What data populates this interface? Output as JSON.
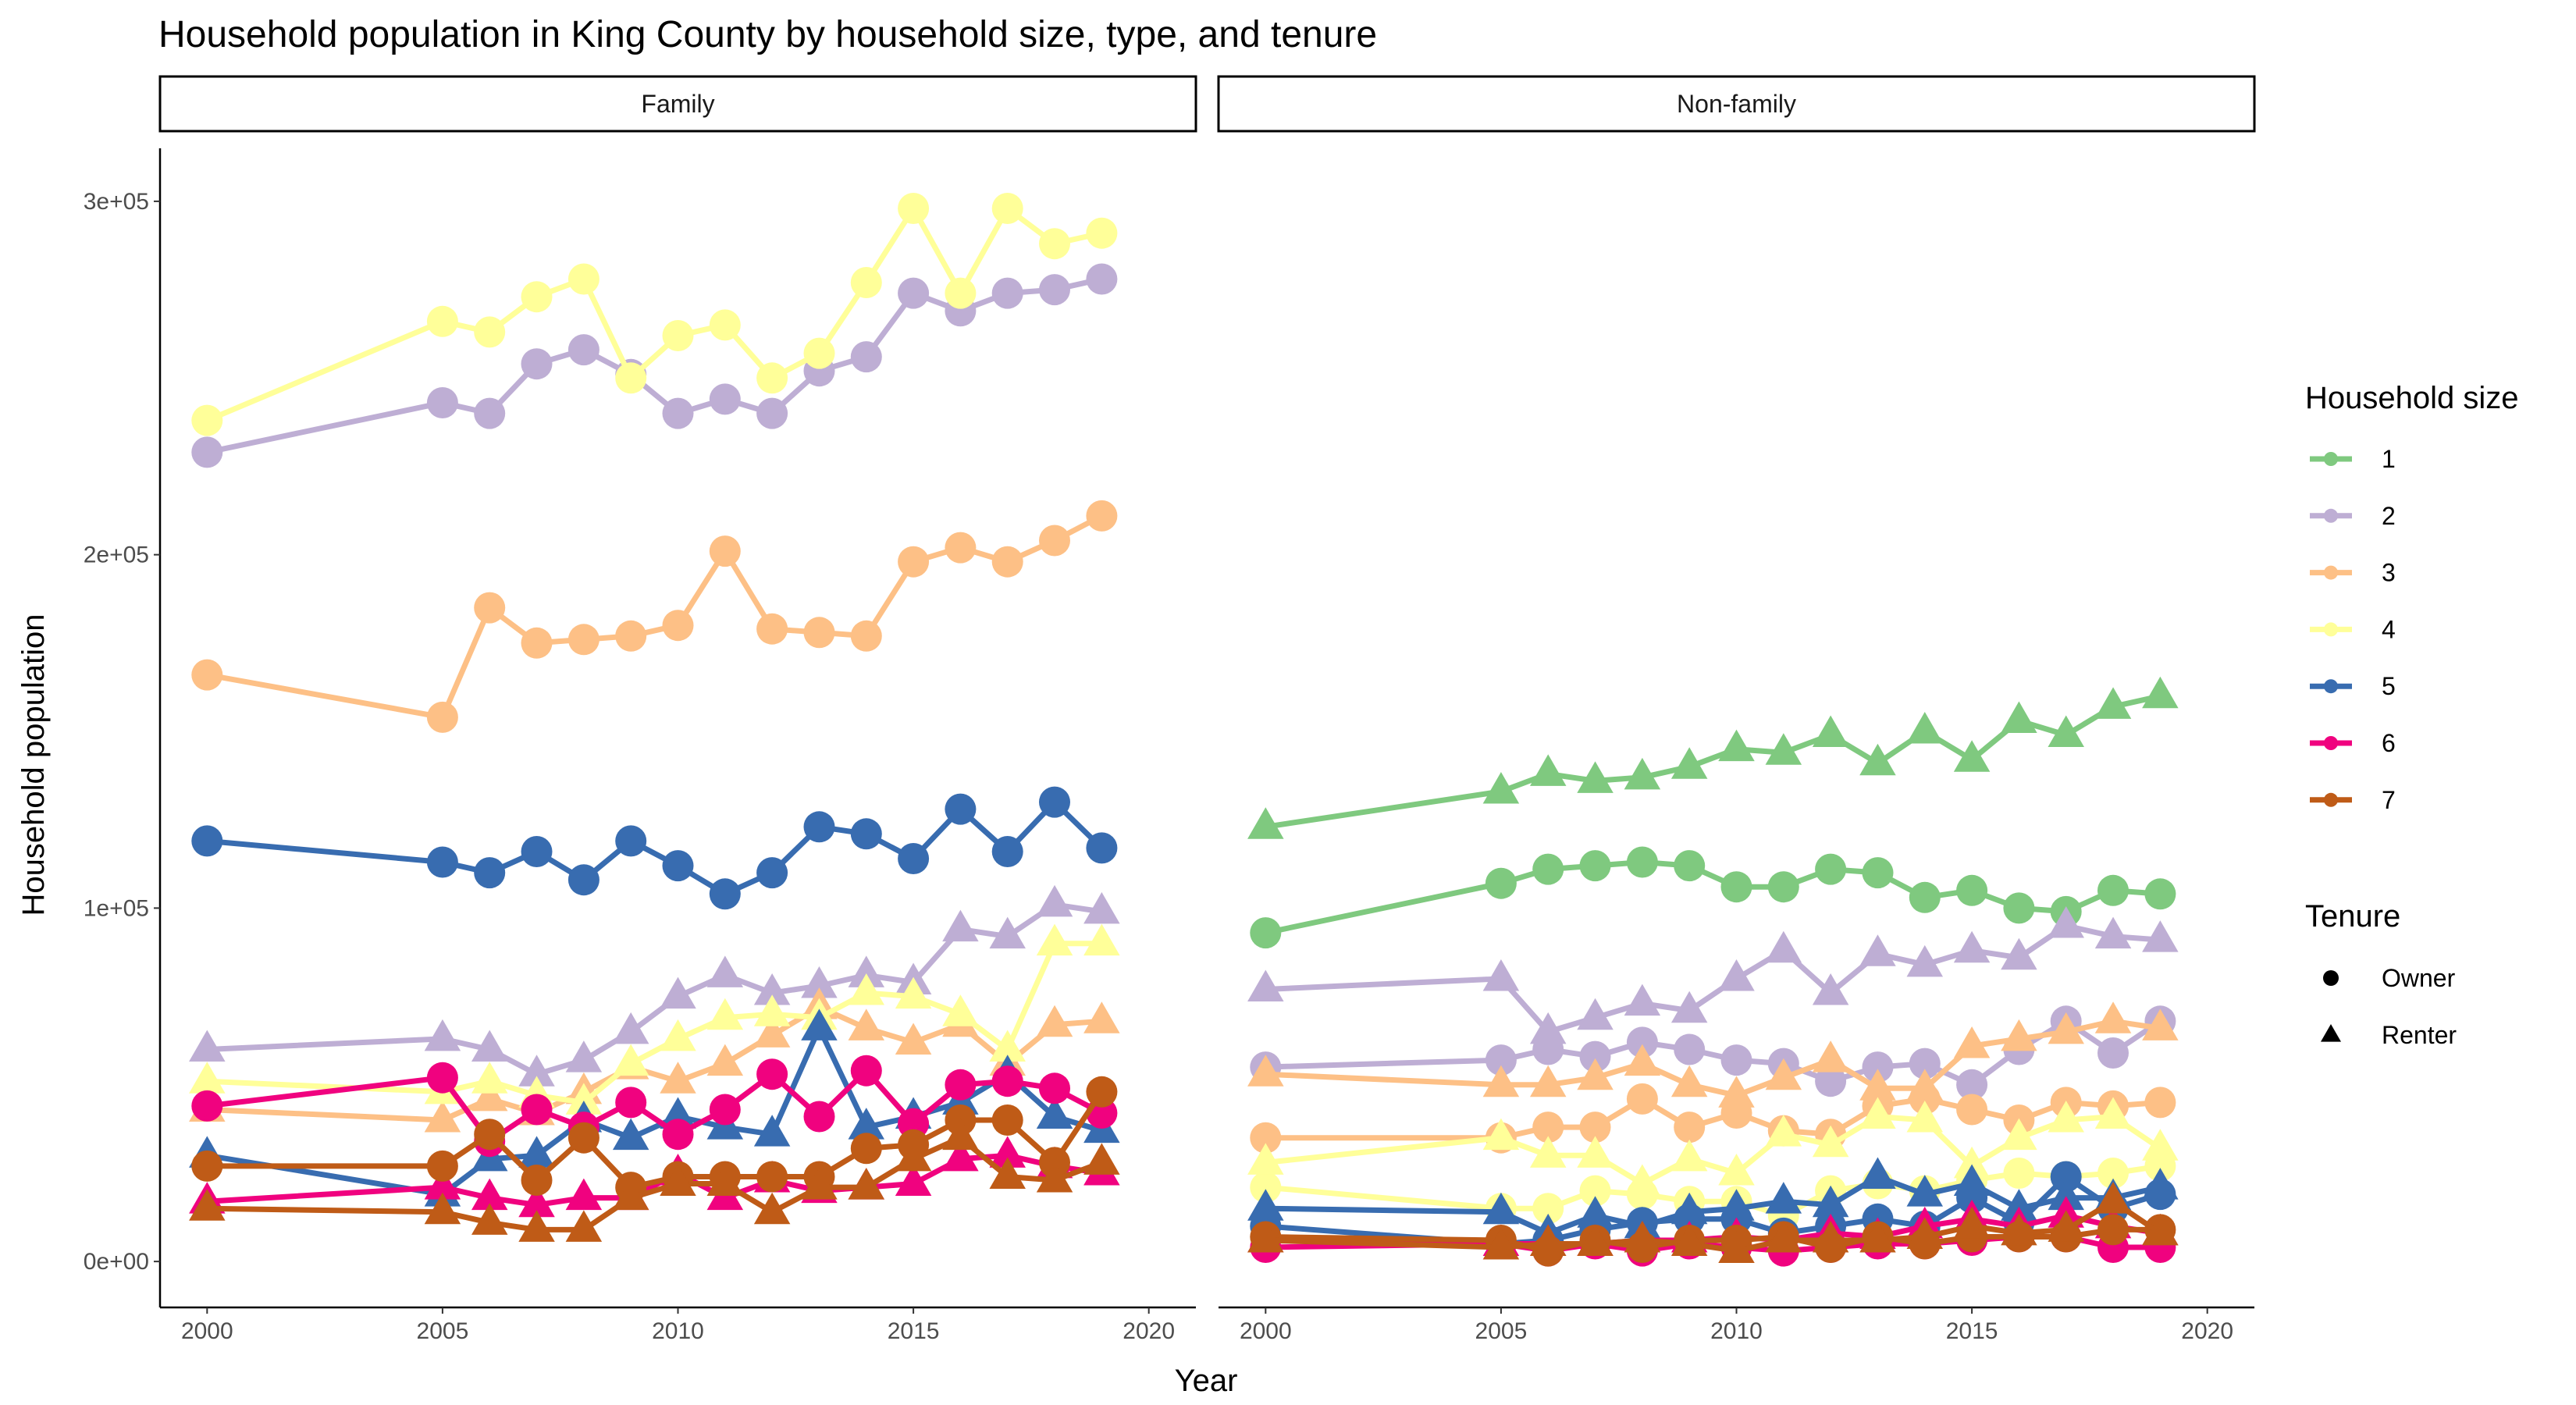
{
  "chart_data": {
    "type": "line",
    "title": "Household population in King County by household size, type, and tenure",
    "xlabel": "Year",
    "ylabel": "Household population",
    "xlim": [
      1999,
      2021
    ],
    "ylim": [
      -13000,
      315000
    ],
    "x_ticks": [
      2000,
      2005,
      2010,
      2015,
      2020
    ],
    "y_ticks": [
      0,
      100000,
      200000,
      300000
    ],
    "y_tick_labels": [
      "0e+00",
      "1e+05",
      "2e+05",
      "3e+05"
    ],
    "grid": false,
    "legend_position": "right",
    "years": [
      2000,
      2005,
      2006,
      2007,
      2008,
      2009,
      2010,
      2011,
      2012,
      2013,
      2014,
      2015,
      2016,
      2017,
      2018,
      2019
    ],
    "size_legend": {
      "title": "Household size",
      "items": [
        {
          "label": "1",
          "color": "#7FC97F"
        },
        {
          "label": "2",
          "color": "#BEAED4"
        },
        {
          "label": "3",
          "color": "#FDC086"
        },
        {
          "label": "4",
          "color": "#FFFF99"
        },
        {
          "label": "5",
          "color": "#386CB0"
        },
        {
          "label": "6",
          "color": "#F0027F"
        },
        {
          "label": "7",
          "color": "#BF5B17"
        }
      ]
    },
    "tenure_legend": {
      "title": "Tenure",
      "items": [
        {
          "label": "Owner",
          "shape": "circle"
        },
        {
          "label": "Renter",
          "shape": "triangle"
        }
      ]
    },
    "panels": [
      {
        "name": "Family",
        "series": [
          {
            "size": "2",
            "tenure": "Owner",
            "values": [
              229000,
              243000,
              240000,
              254000,
              258000,
              251000,
              240000,
              244000,
              240000,
              252000,
              256000,
              274000,
              269000,
              274000,
              275000,
              278000
            ]
          },
          {
            "size": "2",
            "tenure": "Renter",
            "values": [
              60000,
              63000,
              60000,
              53000,
              57000,
              65000,
              75000,
              81000,
              76000,
              78000,
              81000,
              79000,
              94000,
              92000,
              101000,
              99000
            ]
          },
          {
            "size": "3",
            "tenure": "Owner",
            "values": [
              166000,
              154000,
              185000,
              175000,
              176000,
              177000,
              180000,
              201000,
              179000,
              178000,
              177000,
              198000,
              202000,
              198000,
              204000,
              211000
            ]
          },
          {
            "size": "3",
            "tenure": "Renter",
            "values": [
              43000,
              40000,
              46000,
              42000,
              48000,
              55000,
              51000,
              56000,
              64000,
              72000,
              66000,
              62000,
              67000,
              56000,
              67000,
              68000
            ]
          },
          {
            "size": "4",
            "tenure": "Owner",
            "values": [
              238000,
              266000,
              263000,
              273000,
              278000,
              250000,
              262000,
              265000,
              250000,
              257000,
              277000,
              298000,
              274000,
              298000,
              288000,
              291000
            ]
          },
          {
            "size": "4",
            "tenure": "Renter",
            "values": [
              51000,
              48000,
              51000,
              47000,
              45000,
              56000,
              63000,
              69000,
              70000,
              69000,
              76000,
              75000,
              70000,
              60000,
              90000,
              90000
            ]
          },
          {
            "size": "5",
            "tenure": "Owner",
            "values": [
              119000,
              113000,
              110000,
              116000,
              108000,
              119000,
              112000,
              104000,
              110000,
              123000,
              121000,
              114000,
              128000,
              116000,
              130000,
              117000
            ]
          },
          {
            "size": "5",
            "tenure": "Renter",
            "values": [
              30000,
              19000,
              29000,
              30000,
              40000,
              35000,
              41000,
              38000,
              36000,
              66000,
              38000,
              41000,
              45000,
              53000,
              41000,
              37000
            ]
          },
          {
            "size": "6",
            "tenure": "Owner",
            "values": [
              44000,
              52000,
              34000,
              43000,
              38000,
              45000,
              36000,
              43000,
              53000,
              41000,
              54000,
              39000,
              50000,
              51000,
              49000,
              42000
            ]
          },
          {
            "size": "6",
            "tenure": "Renter",
            "values": [
              17000,
              21000,
              18000,
              16000,
              18000,
              18000,
              25000,
              18000,
              23000,
              20000,
              21000,
              22000,
              29000,
              30000,
              27000,
              25000
            ]
          },
          {
            "size": "7",
            "tenure": "Owner",
            "values": [
              27000,
              27000,
              36000,
              23000,
              35000,
              21000,
              24000,
              24000,
              24000,
              24000,
              32000,
              33000,
              40000,
              40000,
              28000,
              48000
            ]
          },
          {
            "size": "7",
            "tenure": "Renter",
            "values": [
              15000,
              14000,
              11000,
              9000,
              9000,
              18000,
              22000,
              22000,
              14000,
              21000,
              21000,
              29000,
              35000,
              24000,
              23000,
              28000
            ]
          }
        ]
      },
      {
        "name": "Non-family",
        "series": [
          {
            "size": "1",
            "tenure": "Owner",
            "values": [
              93000,
              107000,
              111000,
              112000,
              113000,
              112000,
              106000,
              106000,
              111000,
              110000,
              103000,
              105000,
              100000,
              99000,
              105000,
              104000
            ]
          },
          {
            "size": "1",
            "tenure": "Renter",
            "values": [
              123000,
              133000,
              138000,
              136000,
              137000,
              140000,
              145000,
              144000,
              149000,
              141000,
              150000,
              142000,
              153000,
              149000,
              157000,
              160000
            ]
          },
          {
            "size": "2",
            "tenure": "Owner",
            "values": [
              55000,
              57000,
              60000,
              58000,
              62000,
              60000,
              57000,
              56000,
              51000,
              55000,
              56000,
              50000,
              60000,
              68000,
              59000,
              68000
            ]
          },
          {
            "size": "2",
            "tenure": "Renter",
            "values": [
              77000,
              80000,
              65000,
              69000,
              73000,
              71000,
              80000,
              88000,
              76000,
              87000,
              84000,
              88000,
              86000,
              95000,
              92000,
              91000
            ]
          },
          {
            "size": "3",
            "tenure": "Owner",
            "values": [
              35000,
              35000,
              38000,
              38000,
              46000,
              38000,
              42000,
              37000,
              36000,
              44000,
              46000,
              43000,
              40000,
              45000,
              44000,
              45000
            ]
          },
          {
            "size": "3",
            "tenure": "Renter",
            "values": [
              53000,
              50000,
              50000,
              52000,
              56000,
              50000,
              47000,
              52000,
              57000,
              49000,
              49000,
              61000,
              63000,
              65000,
              68000,
              66000
            ]
          },
          {
            "size": "4",
            "tenure": "Owner",
            "values": [
              21000,
              15000,
              15000,
              20000,
              19000,
              17000,
              17000,
              13000,
              20000,
              22000,
              20000,
              23000,
              25000,
              24000,
              25000,
              27000
            ]
          },
          {
            "size": "4",
            "tenure": "Renter",
            "values": [
              28000,
              35000,
              30000,
              30000,
              22000,
              29000,
              25000,
              36000,
              33000,
              41000,
              40000,
              27000,
              35000,
              40000,
              41000,
              32000
            ]
          },
          {
            "size": "5",
            "tenure": "Owner",
            "values": [
              10000,
              5000,
              6000,
              9000,
              11000,
              12000,
              12000,
              8000,
              10000,
              12000,
              10000,
              18000,
              11000,
              24000,
              15000,
              19000
            ]
          },
          {
            "size": "5",
            "tenure": "Renter",
            "values": [
              15000,
              14000,
              8000,
              13000,
              10000,
              14000,
              15000,
              17000,
              16000,
              24000,
              19000,
              22000,
              15000,
              18000,
              18000,
              21000
            ]
          },
          {
            "size": "6",
            "tenure": "Owner",
            "values": [
              4000,
              5000,
              3000,
              5000,
              3000,
              5000,
              4000,
              3000,
              4000,
              5000,
              5000,
              6000,
              7000,
              7000,
              4000,
              4000
            ]
          },
          {
            "size": "6",
            "tenure": "Renter",
            "values": [
              6000,
              5000,
              5000,
              5000,
              6000,
              6000,
              7000,
              6000,
              8000,
              7000,
              10000,
              12000,
              10000,
              13000,
              10000,
              8000
            ]
          },
          {
            "size": "7",
            "tenure": "Owner",
            "values": [
              7000,
              6000,
              3000,
              6000,
              4000,
              6000,
              6000,
              7000,
              4000,
              7000,
              5000,
              7000,
              7000,
              7000,
              9000,
              9000
            ]
          },
          {
            "size": "7",
            "tenure": "Renter",
            "values": [
              6000,
              4000,
              5000,
              5000,
              6000,
              5000,
              3000,
              6000,
              6000,
              6000,
              7000,
              10000,
              8000,
              9000,
              17000,
              8000
            ]
          }
        ]
      }
    ]
  }
}
